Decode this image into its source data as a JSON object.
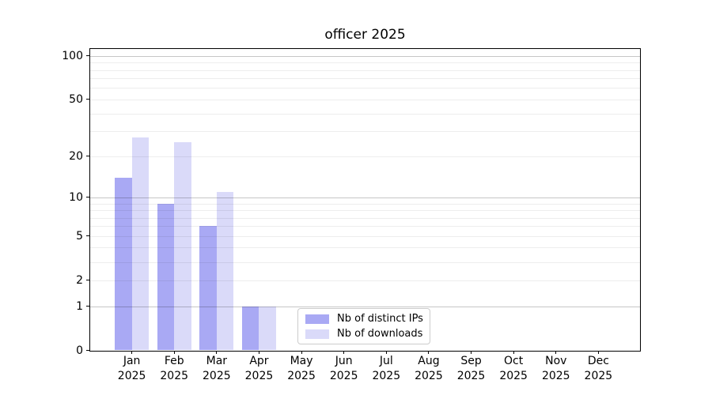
{
  "chart_data": {
    "type": "bar",
    "title": "officer 2025",
    "categories": [
      "Jan 2025",
      "Feb 2025",
      "Mar 2025",
      "Apr 2025",
      "May 2025",
      "Jun 2025",
      "Jul 2025",
      "Aug 2025",
      "Sep 2025",
      "Oct 2025",
      "Nov 2025",
      "Dec 2025"
    ],
    "x_tick_months": [
      "Jan",
      "Feb",
      "Mar",
      "Apr",
      "May",
      "Jun",
      "Jul",
      "Aug",
      "Sep",
      "Oct",
      "Nov",
      "Dec"
    ],
    "x_tick_year": "2025",
    "series": [
      {
        "name": "Nb of distinct IPs",
        "color": "#a9a9f4",
        "values": [
          14,
          9,
          6,
          1,
          0,
          0,
          0,
          0,
          0,
          0,
          0,
          0
        ]
      },
      {
        "name": "Nb of downloads",
        "color": "#dadaf9",
        "values": [
          27,
          25,
          11,
          1,
          0,
          0,
          0,
          0,
          0,
          0,
          0,
          0
        ]
      }
    ],
    "yscale": "log1p",
    "yticks": [
      0,
      1,
      2,
      5,
      10,
      20,
      50,
      100
    ],
    "ytick_labels": [
      "0",
      "1",
      "2",
      "5",
      "10",
      "20",
      "50",
      "100"
    ],
    "ylim": [
      0,
      111
    ],
    "grid": true,
    "grid_major_values": [
      1,
      10,
      100
    ],
    "grid_minor_values": [
      2,
      3,
      4,
      5,
      6,
      7,
      8,
      9,
      20,
      30,
      40,
      50,
      60,
      70,
      80,
      90
    ],
    "legend_position": "lower center",
    "colors": {
      "axis": "#000000",
      "background": "#ffffff",
      "legend_border": "#cccccc"
    }
  }
}
